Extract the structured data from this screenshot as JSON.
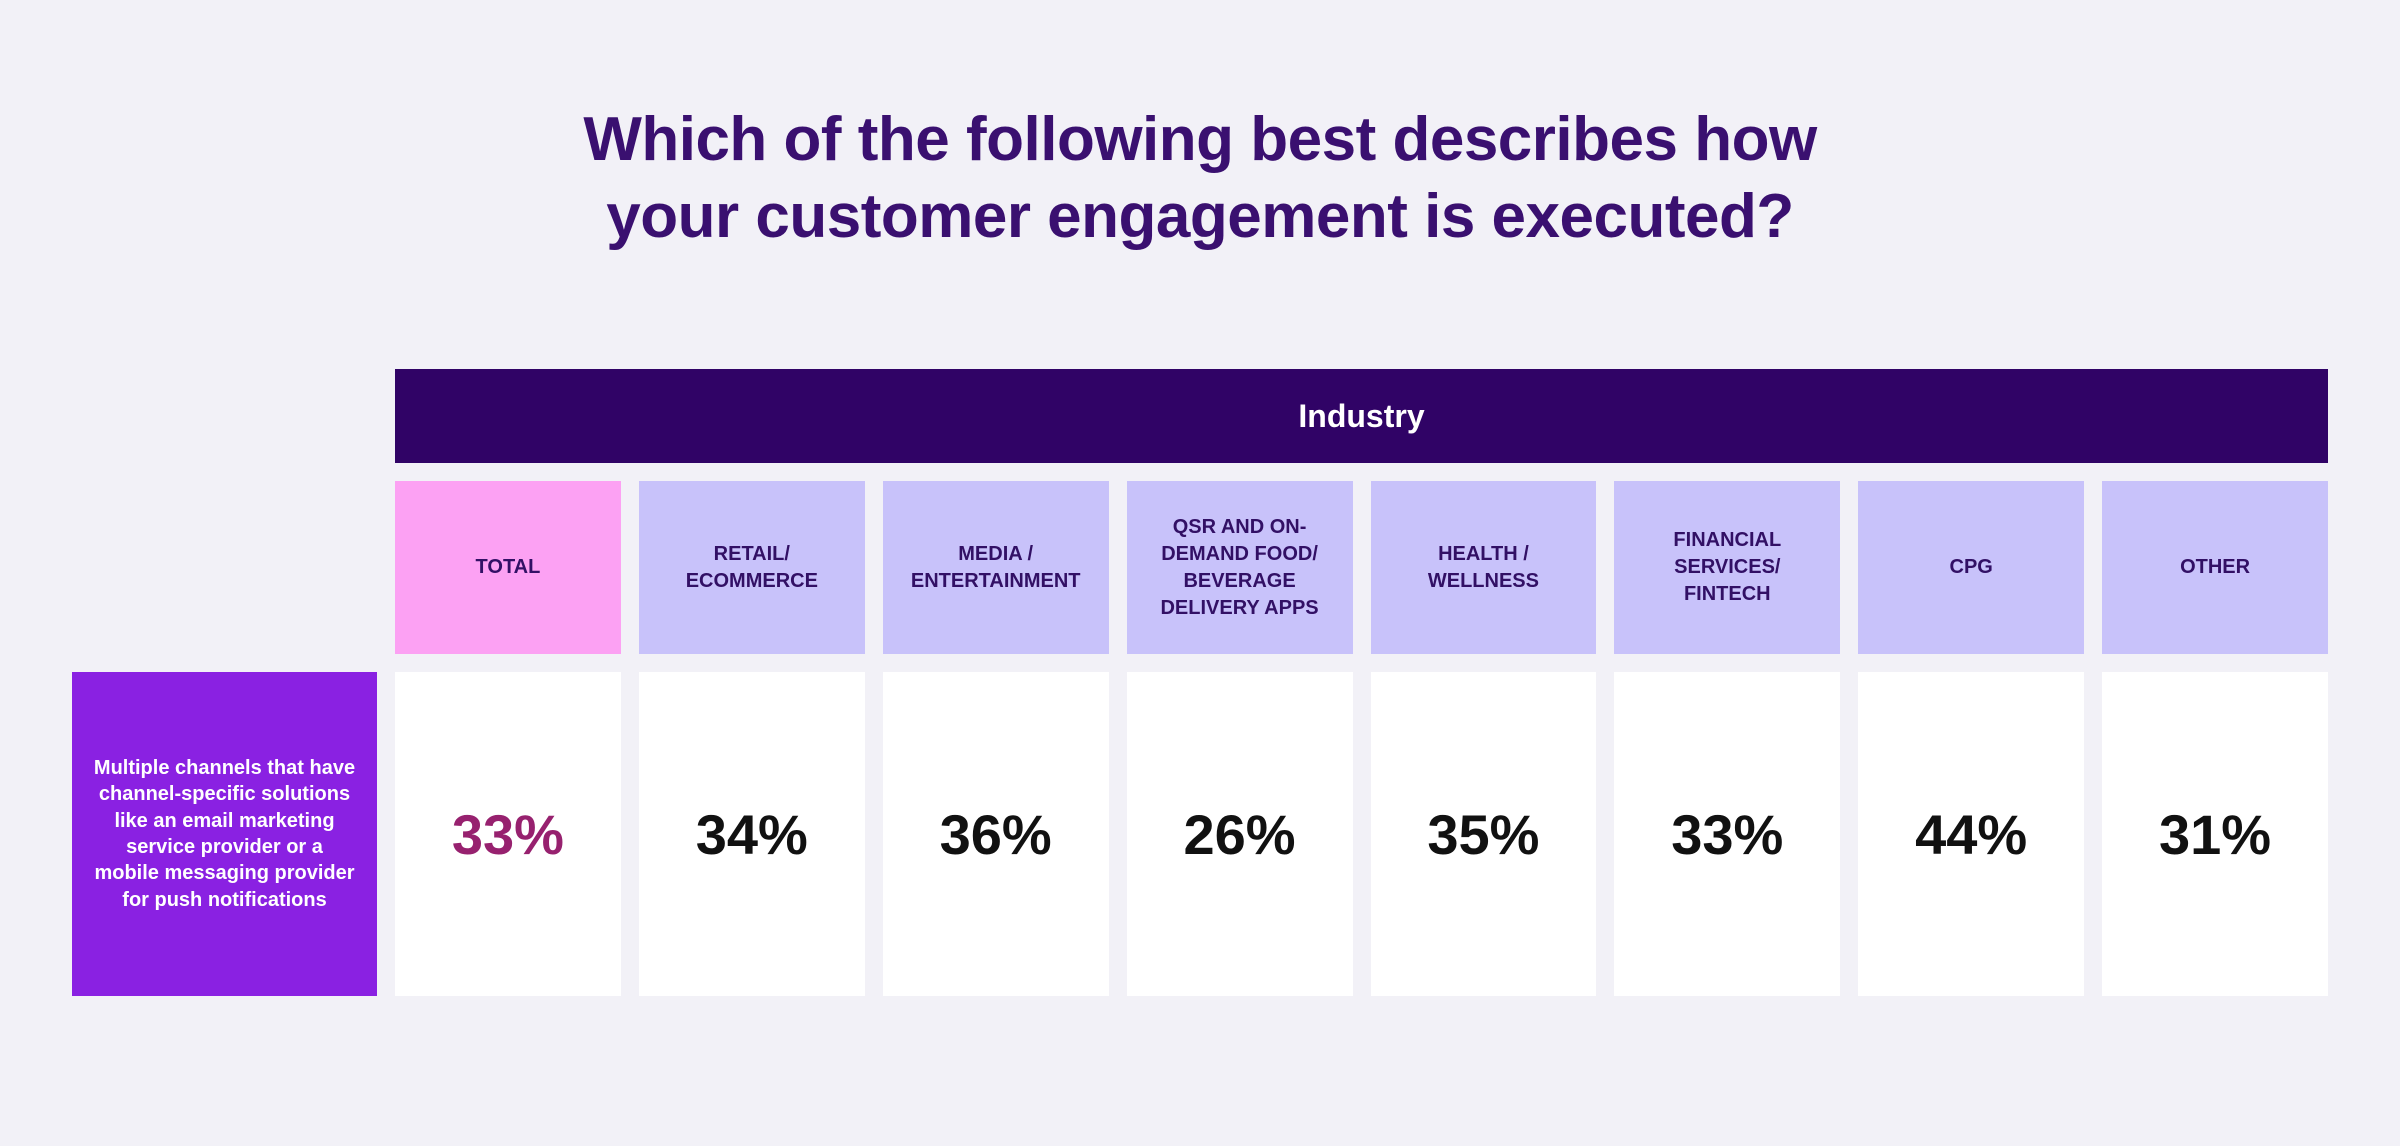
{
  "colors": {
    "page_bg": "#F2F1F7",
    "title_text": "#3A1070",
    "band_bg": "#300366",
    "band_text": "#FFFFFF",
    "header_bg": "#C8C2FA",
    "header_bg_total": "#FCA1F3",
    "header_text": "#321065",
    "row_label_bg": "#8A21E2",
    "row_label_text": "#FFFFFF",
    "cell_bg": "#FFFFFF",
    "value_text": "#111111",
    "value_total": "#97216F"
  },
  "header": {
    "title_lines": [
      "Which of the following best describes how",
      "your customer engagement is executed?"
    ]
  },
  "chart_data": {
    "type": "table",
    "title": "Which of the following best describes how your customer engagement is executed?",
    "group_header": "Industry",
    "highlight_column": "TOTAL",
    "columns": [
      "TOTAL",
      "RETAIL/ ECOMMERCE",
      "MEDIA / ENTERTAINMENT",
      "QSR AND ON-DEMAND FOOD/ BEVERAGE DELIVERY APPS",
      "HEALTH / WELLNESS",
      "FINANCIAL SERVICES/ FINTECH",
      "CPG",
      "OTHER"
    ],
    "rows": [
      {
        "label": "Multiple channels that have channel-specific solutions like an email marketing service provider or a mobile messaging provider for push notifications",
        "values": [
          33,
          34,
          36,
          26,
          35,
          33,
          44,
          31
        ],
        "display": [
          "33%",
          "34%",
          "36%",
          "26%",
          "35%",
          "33%",
          "44%",
          "31%"
        ]
      }
    ]
  }
}
